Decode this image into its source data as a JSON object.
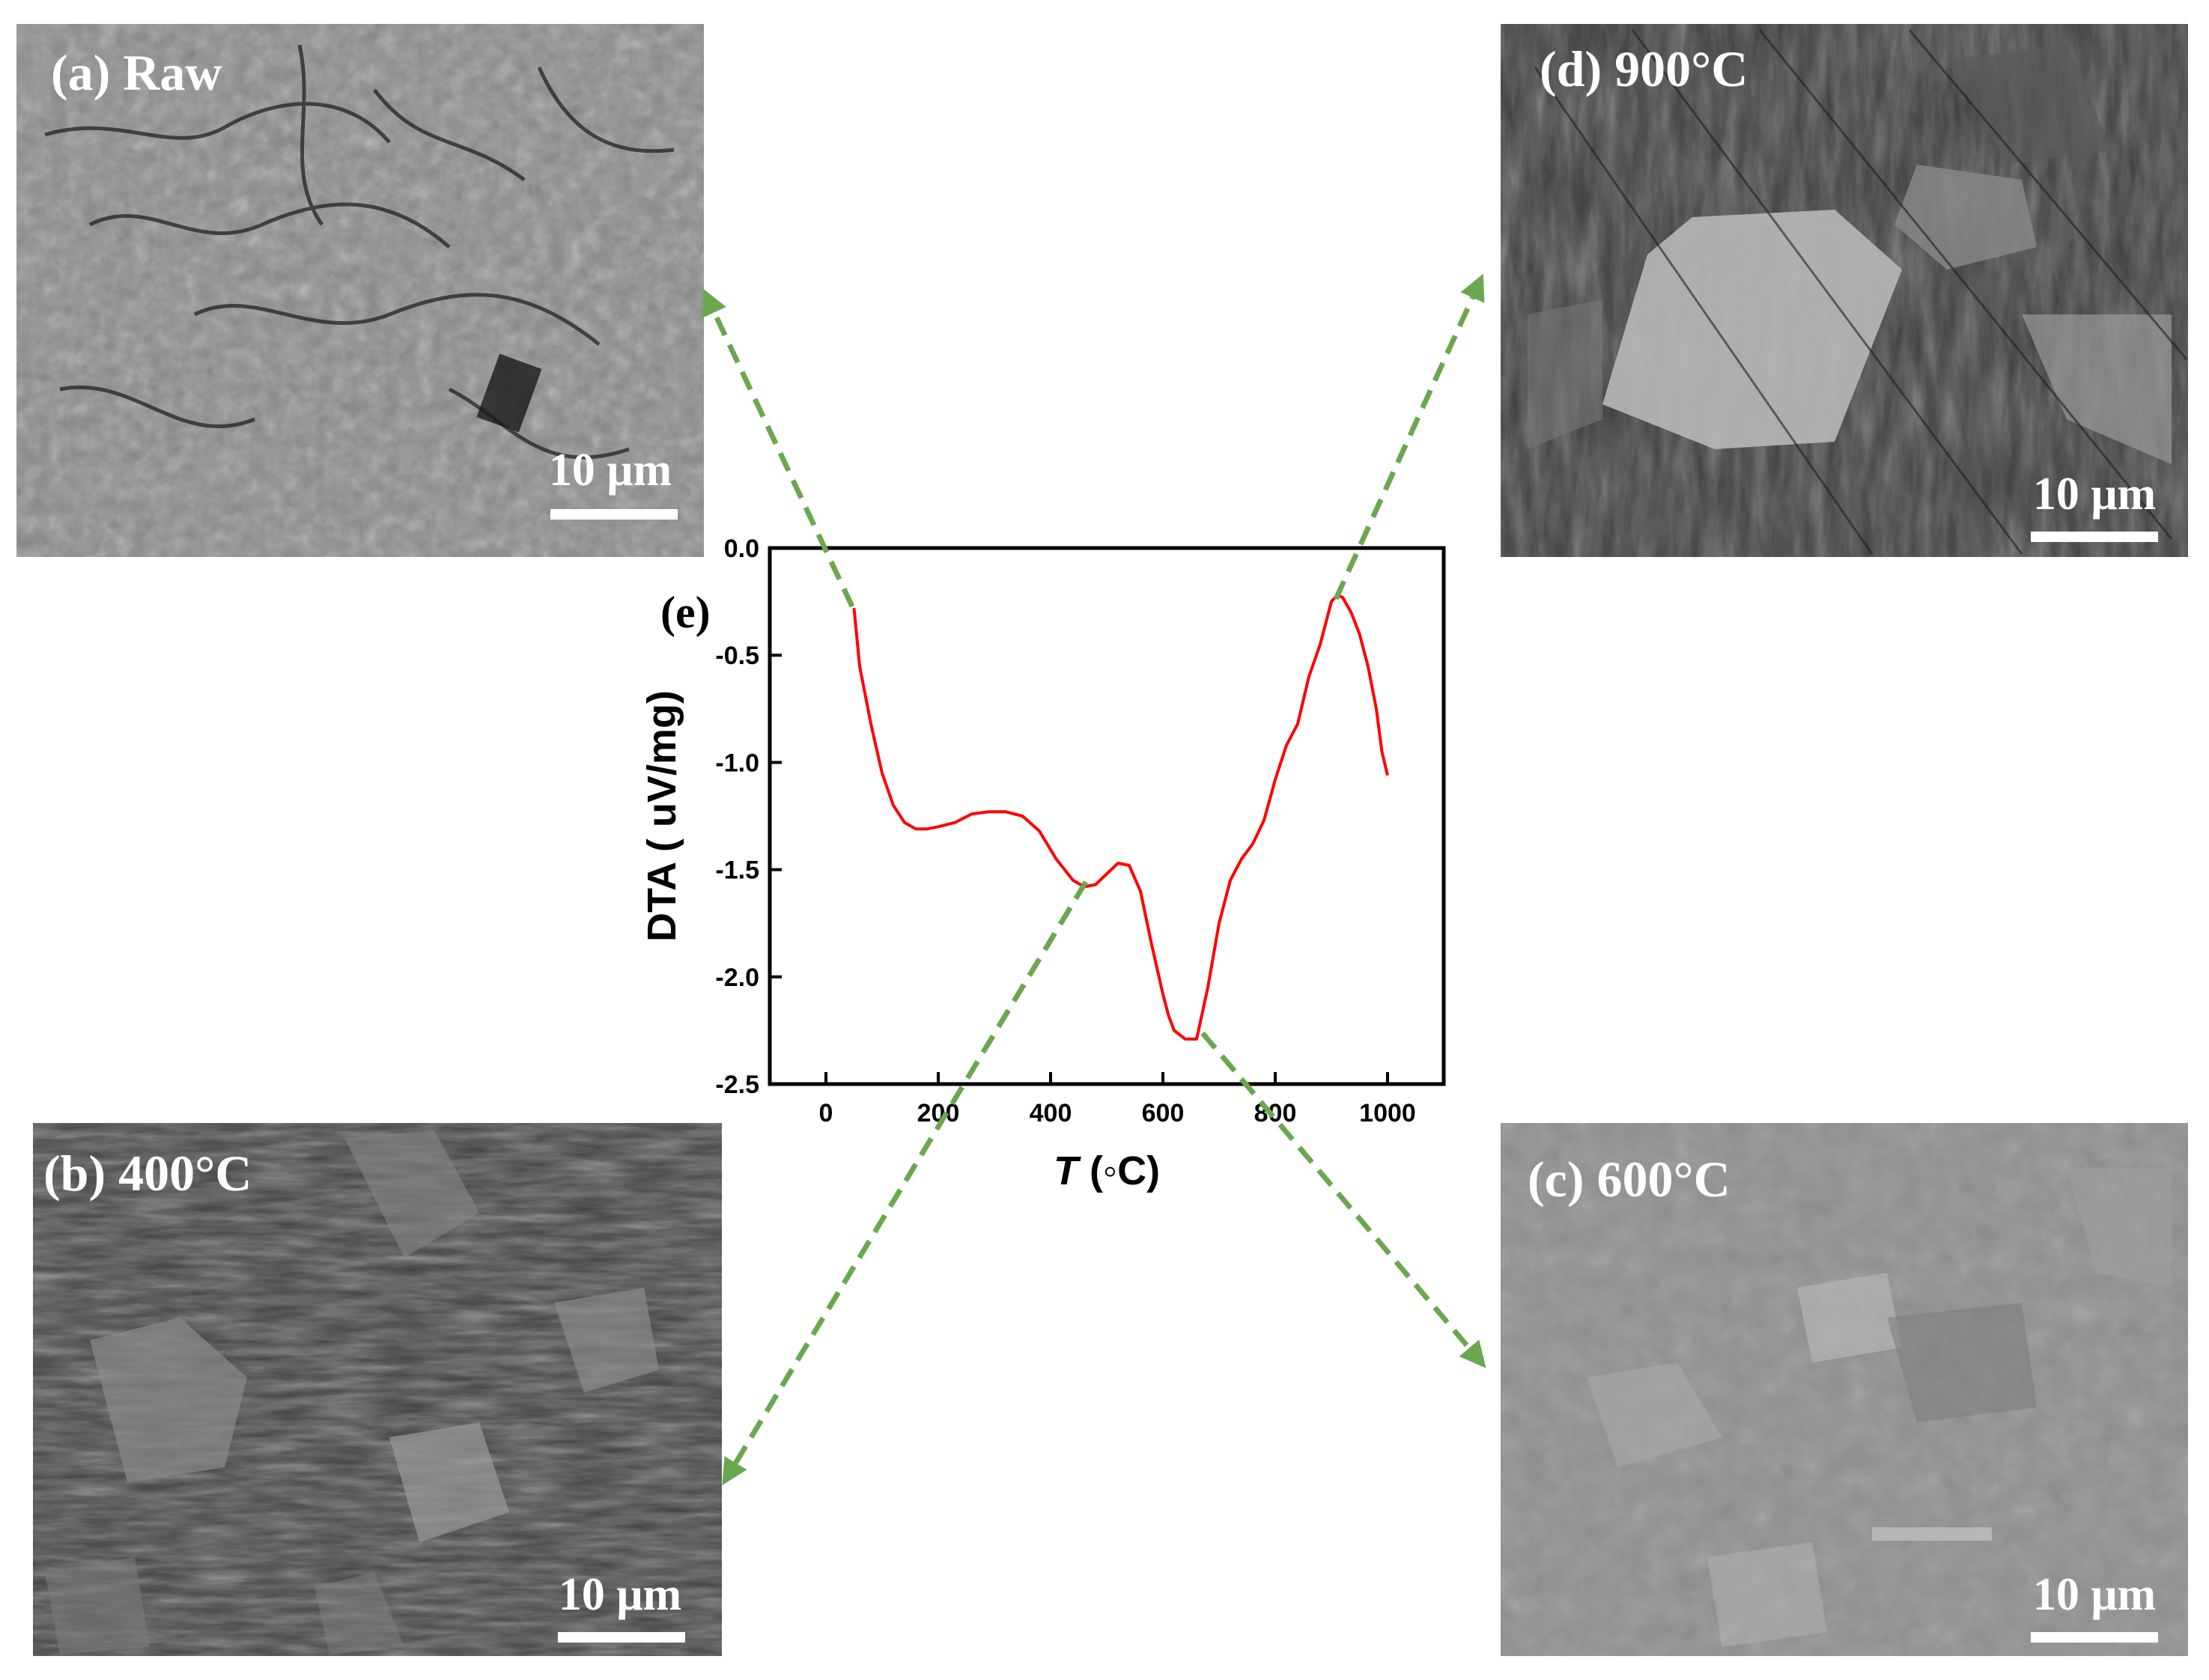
{
  "panels": {
    "a": {
      "label": "(a) Raw",
      "scale_bar": "10 μm"
    },
    "b": {
      "label": "(b) 400°C",
      "scale_bar": "10 μm"
    },
    "c": {
      "label": "(c) 600°C",
      "scale_bar": "10 μm"
    },
    "d": {
      "label": "(d) 900°C",
      "scale_bar": "10 μm"
    }
  },
  "chart_panel_label": "(e)",
  "colors": {
    "curve": "#ff0000",
    "arrow": "#6aa84f",
    "panel_a_bg": "#8a8a8a",
    "panel_b_bg": "#3e3e3e",
    "panel_c_bg": "#8f8f8f",
    "panel_d_bg": "#3a3a3a"
  },
  "chart_data": {
    "type": "line",
    "xlabel_italic": "T",
    "xlabel_unit": " (◦C)",
    "ylabel": "DTA ( uV/mg)",
    "xlim": [
      -100,
      1100
    ],
    "ylim": [
      -2.5,
      0.0
    ],
    "xticks": [
      0,
      200,
      400,
      600,
      800,
      1000
    ],
    "yticks": [
      0.0,
      -0.5,
      -1.0,
      -1.5,
      -2.0,
      -2.5
    ],
    "ytick_labels": [
      "0.0",
      "-0.5",
      "-1.0",
      "-1.5",
      "-2.0",
      "-2.5"
    ],
    "series": [
      {
        "x": [
          50,
          60,
          80,
          100,
          120,
          140,
          160,
          180,
          200,
          230,
          260,
          290,
          320,
          350,
          380,
          410,
          440,
          460,
          480,
          500,
          520,
          540,
          560,
          580,
          600,
          610,
          620,
          640,
          660,
          680,
          700,
          720,
          740,
          760,
          780,
          800,
          820,
          840,
          860,
          880,
          900,
          910,
          920,
          935,
          950,
          965,
          980,
          990,
          1000
        ],
        "y": [
          -0.28,
          -0.55,
          -0.82,
          -1.05,
          -1.2,
          -1.28,
          -1.31,
          -1.31,
          -1.3,
          -1.28,
          -1.24,
          -1.23,
          -1.23,
          -1.25,
          -1.32,
          -1.45,
          -1.55,
          -1.58,
          -1.57,
          -1.52,
          -1.47,
          -1.48,
          -1.6,
          -1.85,
          -2.08,
          -2.18,
          -2.25,
          -2.29,
          -2.29,
          -2.05,
          -1.75,
          -1.55,
          -1.45,
          -1.38,
          -1.27,
          -1.08,
          -0.92,
          -0.82,
          -0.6,
          -0.45,
          -0.25,
          -0.22,
          -0.23,
          -0.3,
          -0.4,
          -0.55,
          -0.75,
          -0.95,
          -1.06
        ]
      }
    ],
    "grid": false,
    "legend": "none"
  }
}
